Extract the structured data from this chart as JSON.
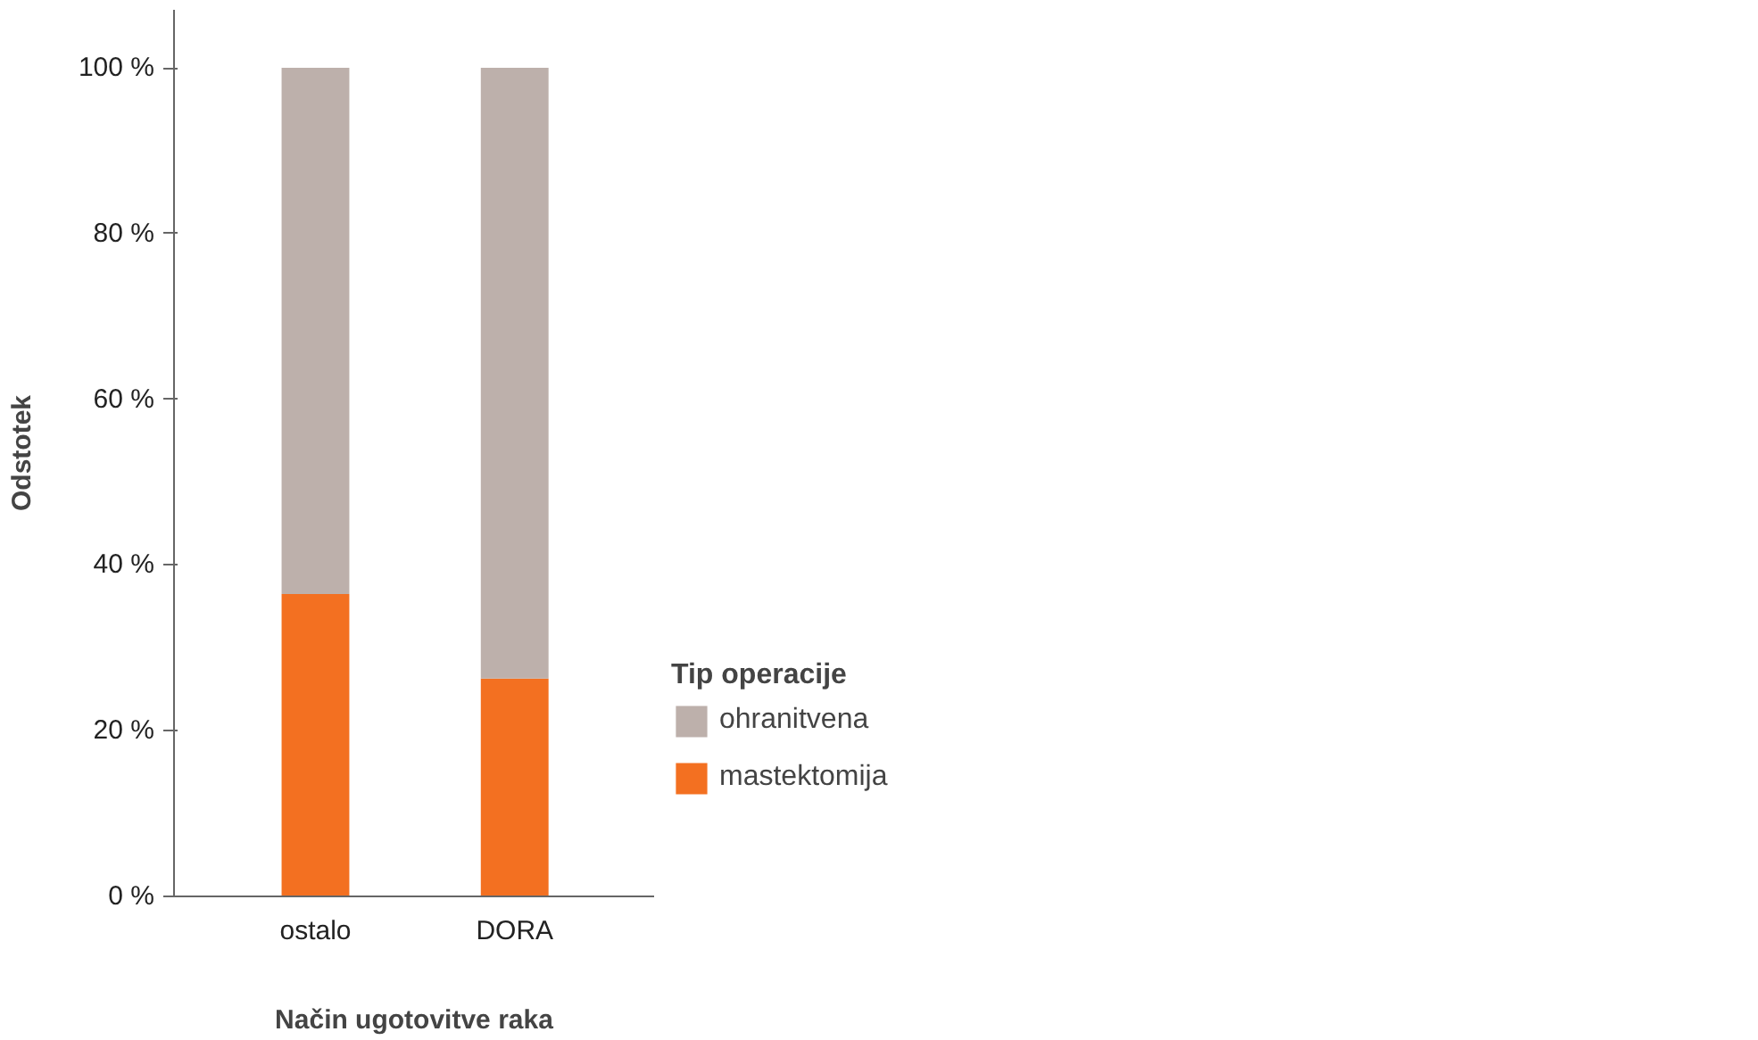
{
  "chart_data": {
    "type": "bar",
    "stacked": true,
    "xlabel": "Način ugotovitve raka",
    "ylabel": "Odstotek",
    "legend_title": "Tip operacije",
    "legend": "right",
    "grid": false,
    "categories": [
      "ostalo",
      "DORA"
    ],
    "series": [
      {
        "name": "mastektomija",
        "color": "#f37021",
        "values": [
          36.5,
          26.3
        ]
      },
      {
        "name": "ohranitvena",
        "color": "#bdb0ab",
        "values": [
          63.5,
          73.7
        ]
      }
    ],
    "ylim": [
      0,
      107
    ],
    "yticks": [
      {
        "value": 0,
        "label": "0 %"
      },
      {
        "value": 20,
        "label": "20 %"
      },
      {
        "value": 40,
        "label": "40 %"
      },
      {
        "value": 60,
        "label": "60 %"
      },
      {
        "value": 80,
        "label": "80 %"
      },
      {
        "value": 100,
        "label": "100 %"
      }
    ]
  }
}
